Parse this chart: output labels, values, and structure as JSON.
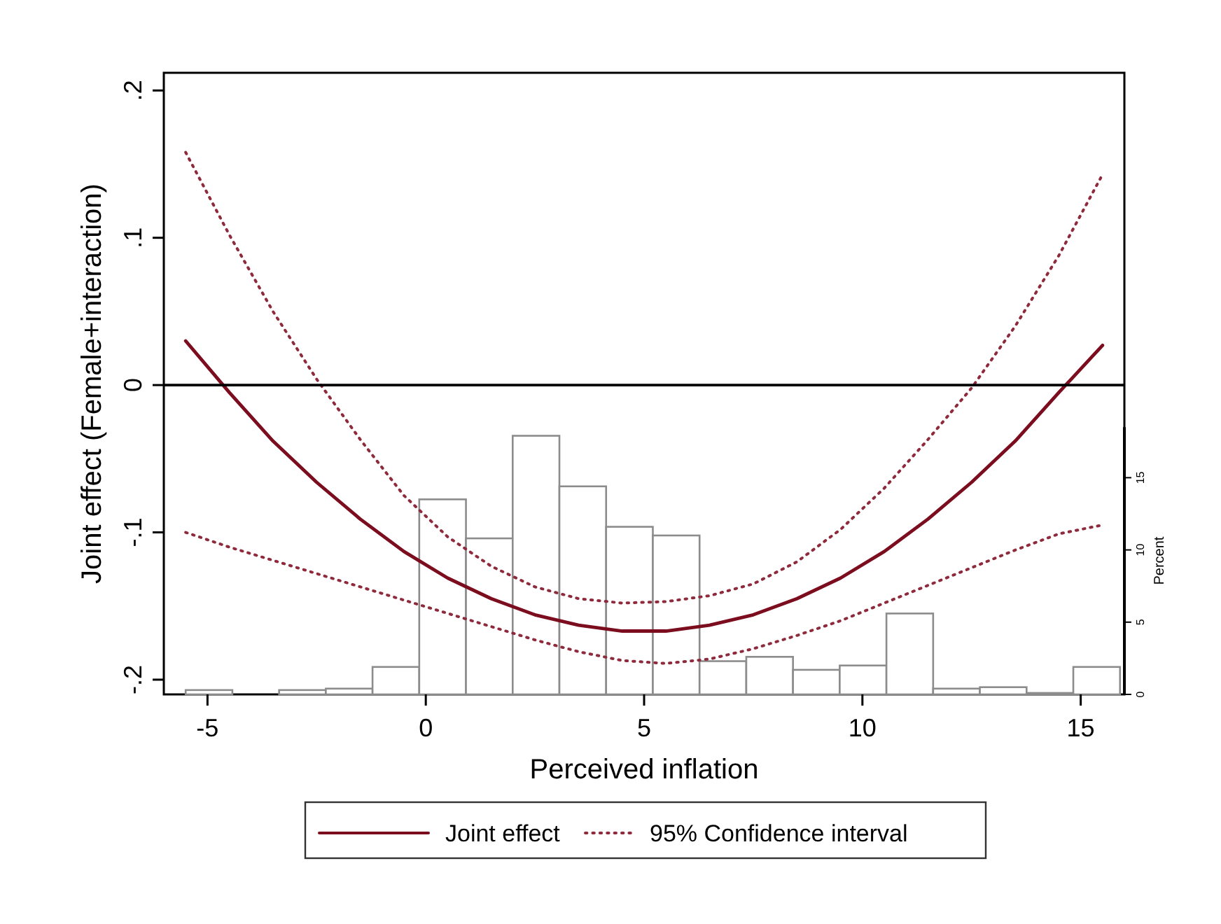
{
  "chart_data": {
    "type": "line",
    "xlabel": "Perceived inflation",
    "ylabel": "Joint effect (Female+interaction)",
    "y2label": "Percent",
    "xlim": [
      -6,
      16
    ],
    "xticks": [
      -5,
      0,
      5,
      10,
      15
    ],
    "ylim": [
      -0.21,
      0.212
    ],
    "yticks": [
      {
        "value": -0.2,
        "label": "-.2"
      },
      {
        "value": -0.1,
        "label": "-.1"
      },
      0,
      {
        "value": 0.1,
        "label": ".1"
      },
      {
        "value": 0.2,
        "label": ".2"
      }
    ],
    "y2lim": [
      0,
      18.5
    ],
    "y2ticks": [
      0,
      5,
      10,
      15
    ],
    "grid": false,
    "legend": "bottom",
    "ref_lines": [
      {
        "axis": "y",
        "value": 0,
        "color": "#000000",
        "line_style": "solid"
      }
    ],
    "series": [
      {
        "type": "histogram",
        "axis": "y2",
        "color": "#ffffff",
        "bins": [
          -5.5,
          -4.43,
          -3.36,
          -2.29,
          -1.22,
          -0.15,
          0.92,
          1.99,
          3.06,
          4.13,
          5.2,
          6.27,
          7.34,
          8.41,
          9.48,
          10.55,
          11.62,
          12.69,
          13.76,
          14.83,
          15.9
        ],
        "values": [
          0.3,
          0,
          0.3,
          0.4,
          1.9,
          13.5,
          10.8,
          17.9,
          14.4,
          11.6,
          11.0,
          2.3,
          2.6,
          1.7,
          2.0,
          5.6,
          0.4,
          0.5,
          0.1,
          1.9
        ]
      },
      {
        "name": "Joint effect",
        "color": "#7b0d1e",
        "line_style": "solid",
        "x": [
          -5.5,
          -4.5,
          -3.5,
          -2.5,
          -1.5,
          -0.5,
          0.5,
          1.5,
          2.5,
          3.5,
          4.5,
          5.5,
          6.5,
          7.5,
          8.5,
          9.5,
          10.5,
          11.5,
          12.5,
          13.5,
          14.5,
          15.5
        ],
        "values": [
          0.03,
          -0.005,
          -0.038,
          -0.066,
          -0.091,
          -0.113,
          -0.131,
          -0.145,
          -0.156,
          -0.163,
          -0.167,
          -0.167,
          -0.163,
          -0.156,
          -0.145,
          -0.131,
          -0.113,
          -0.091,
          -0.066,
          -0.038,
          -0.005,
          0.027
        ]
      },
      {
        "name": "95% Confidence interval",
        "color": "#8e2a3c",
        "line_style": "dotted",
        "x": [
          -5.5,
          -4.5,
          -3.5,
          -2.5,
          -1.5,
          -0.5,
          0.5,
          1.5,
          2.5,
          3.5,
          4.5,
          5.5,
          6.5,
          7.5,
          8.5,
          9.5,
          10.5,
          11.5,
          12.5,
          13.5,
          14.5,
          15.5
        ],
        "values": [
          0.158,
          0.102,
          0.05,
          0.004,
          -0.037,
          -0.075,
          -0.103,
          -0.123,
          -0.137,
          -0.145,
          -0.148,
          -0.147,
          -0.143,
          -0.135,
          -0.12,
          -0.098,
          -0.07,
          -0.037,
          -0.002,
          0.04,
          0.088,
          0.143
        ]
      },
      {
        "color": "#8e2a3c",
        "line_style": "dotted",
        "x": [
          -5.5,
          -4.5,
          -3.5,
          -2.5,
          -1.5,
          -0.5,
          0.5,
          1.5,
          2.5,
          3.5,
          4.5,
          5.5,
          6.5,
          7.5,
          8.5,
          9.5,
          10.5,
          11.5,
          12.5,
          13.5,
          14.5,
          15.5
        ],
        "values": [
          -0.1,
          -0.11,
          -0.119,
          -0.128,
          -0.137,
          -0.146,
          -0.155,
          -0.164,
          -0.173,
          -0.181,
          -0.187,
          -0.189,
          -0.186,
          -0.179,
          -0.17,
          -0.16,
          -0.148,
          -0.136,
          -0.124,
          -0.112,
          -0.101,
          -0.095
        ]
      }
    ]
  }
}
